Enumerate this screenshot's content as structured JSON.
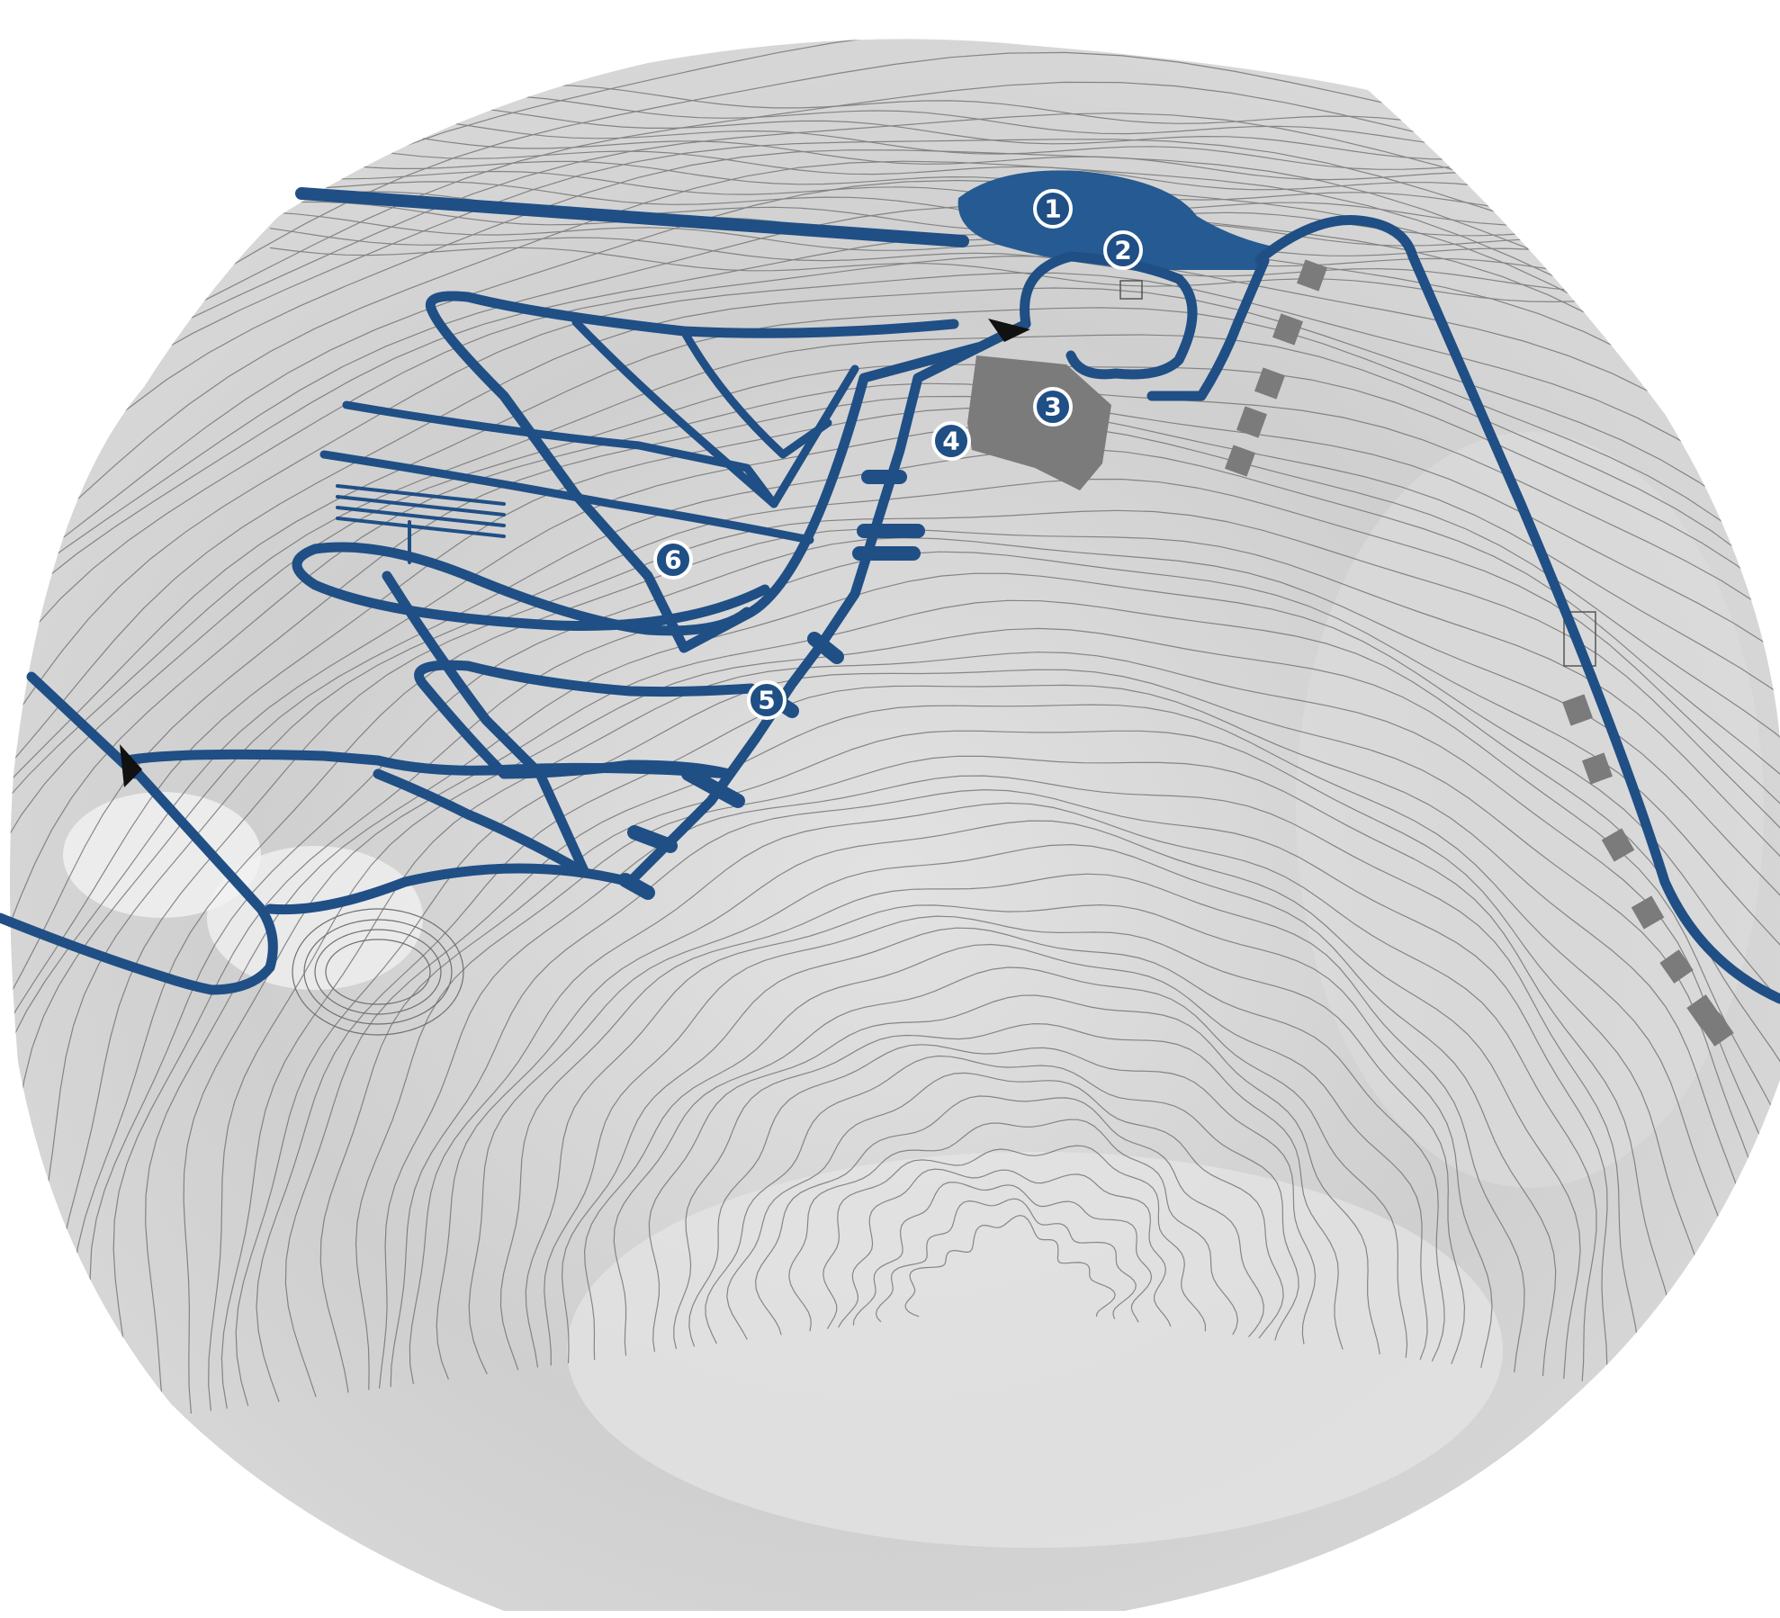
{
  "map": {
    "colors": {
      "path": "#1f4f85",
      "plaza": "#255a92",
      "terrain": "#d3d3d3",
      "terrain_light": "#ececec",
      "contour": "#6e6e6e",
      "building": "#7b7b7b",
      "arrow": "#111111",
      "marker_fill": "#1f4f85",
      "marker_ring": "#ffffff",
      "marker_text": "#ffffff"
    },
    "markers": [
      {
        "id": "marker-1",
        "label": "1"
      },
      {
        "id": "marker-2",
        "label": "2"
      },
      {
        "id": "marker-3",
        "label": "3"
      },
      {
        "id": "marker-4",
        "label": "4"
      },
      {
        "id": "marker-5",
        "label": "5"
      },
      {
        "id": "marker-6",
        "label": "6"
      }
    ],
    "arrows": [
      {
        "id": "entry-arrow-north",
        "icon": "direction-arrow-icon"
      },
      {
        "id": "entry-arrow-west",
        "icon": "direction-arrow-icon"
      }
    ]
  }
}
